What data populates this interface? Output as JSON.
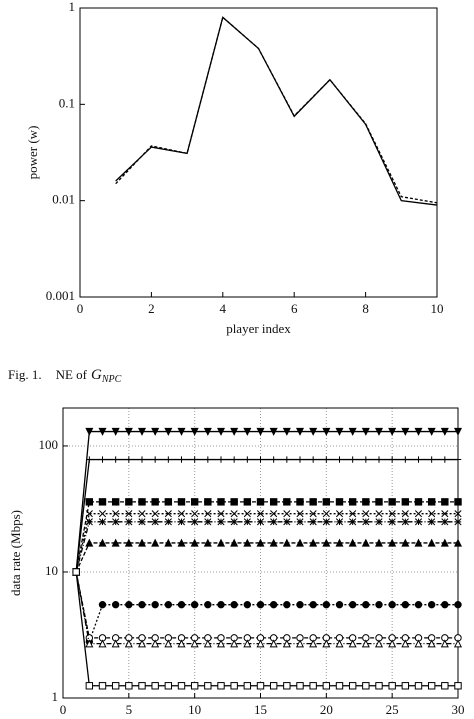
{
  "caption": {
    "label": "Fig. 1.",
    "text": "NE of",
    "symbol": "G",
    "subscript": "NPC"
  },
  "chart_data": [
    {
      "type": "line",
      "x_label": "player index",
      "y_label": "power (w)",
      "x": [
        1,
        2,
        3,
        4,
        5,
        6,
        7,
        8,
        9,
        10
      ],
      "series": [
        {
          "color": "#000000",
          "dash": "none",
          "values": [
            0.016,
            0.036,
            0.031,
            0.8,
            0.38,
            0.075,
            0.18,
            0.062,
            0.01,
            0.009
          ]
        },
        {
          "color": "#000000",
          "dash": "3,2",
          "values": [
            0.015,
            0.037,
            0.031,
            0.8,
            0.38,
            0.076,
            0.18,
            0.063,
            0.011,
            0.0095
          ]
        }
      ],
      "xlim": [
        0,
        10
      ],
      "xticks": [
        0,
        2,
        4,
        6,
        8,
        10
      ],
      "ylim": [
        0.001,
        1
      ],
      "yticks": [
        0.001,
        0.01,
        0.1,
        1
      ],
      "log_y": true,
      "grid": false
    },
    {
      "type": "line",
      "y_label": "data rate (Mbps)",
      "x": [
        1,
        2,
        3,
        4,
        5,
        6,
        7,
        8,
        9,
        10,
        11,
        12,
        13,
        14,
        15,
        16,
        17,
        18,
        19,
        20,
        21,
        22,
        23,
        24,
        25,
        26,
        27,
        28,
        29,
        30
      ],
      "series": [
        {
          "color": "#000000",
          "dash": "none",
          "marker": "triangle-down",
          "values": [
            10,
            130,
            130,
            130,
            130,
            130,
            130,
            130,
            130,
            130,
            130,
            130,
            130,
            130,
            130,
            130,
            130,
            130,
            130,
            130,
            130,
            130,
            130,
            130,
            130,
            130,
            130,
            130,
            130,
            130
          ]
        },
        {
          "color": "#000000",
          "dash": "none",
          "marker": "plus",
          "values": [
            10,
            78,
            78,
            78,
            78,
            78,
            78,
            78,
            78,
            78,
            78,
            78,
            78,
            78,
            78,
            78,
            78,
            78,
            78,
            78,
            78,
            78,
            78,
            78,
            78,
            78,
            78,
            78,
            78,
            78
          ]
        },
        {
          "color": "#000000",
          "dash": "4,2",
          "marker": "square",
          "values": [
            10,
            36,
            36,
            36,
            36,
            36,
            36,
            36,
            36,
            36,
            36,
            36,
            36,
            36,
            36,
            36,
            36,
            36,
            36,
            36,
            36,
            36,
            36,
            36,
            36,
            36,
            36,
            36,
            36,
            36
          ]
        },
        {
          "color": "#000000",
          "dash": "2,2",
          "marker": "cross",
          "values": [
            10,
            29,
            29,
            29,
            29,
            29,
            29,
            29,
            29,
            29,
            29,
            29,
            29,
            29,
            29,
            29,
            29,
            29,
            29,
            29,
            29,
            29,
            29,
            29,
            29,
            29,
            29,
            29,
            29,
            29
          ]
        },
        {
          "color": "#000000",
          "dash": "5,2,1,2",
          "marker": "star",
          "values": [
            10,
            25,
            25,
            25,
            25,
            25,
            25,
            25,
            25,
            25,
            25,
            25,
            25,
            25,
            25,
            25,
            25,
            25,
            25,
            25,
            25,
            25,
            25,
            25,
            25,
            25,
            25,
            25,
            25,
            25
          ]
        },
        {
          "color": "#000000",
          "dash": "4,2",
          "marker": "triangle",
          "values": [
            10,
            17,
            17,
            17,
            17,
            17,
            17,
            17,
            17,
            17,
            17,
            17,
            17,
            17,
            17,
            17,
            17,
            17,
            17,
            17,
            17,
            17,
            17,
            17,
            17,
            17,
            17,
            17,
            17,
            17
          ]
        },
        {
          "color": "#000000",
          "dash": "2,2",
          "marker": "circle",
          "values": [
            10,
            2.8,
            5.5,
            5.5,
            5.5,
            5.5,
            5.5,
            5.5,
            5.5,
            5.5,
            5.5,
            5.5,
            5.5,
            5.5,
            5.5,
            5.5,
            5.5,
            5.5,
            5.5,
            5.5,
            5.5,
            5.5,
            5.5,
            5.5,
            5.5,
            5.5,
            5.5,
            5.5,
            5.5,
            5.5
          ]
        },
        {
          "color": "#000000",
          "dash": "4,2",
          "marker": "circle-open",
          "values": [
            10,
            3.0,
            3.0,
            3.0,
            3.0,
            3.0,
            3.0,
            3.0,
            3.0,
            3.0,
            3.0,
            3.0,
            3.0,
            3.0,
            3.0,
            3.0,
            3.0,
            3.0,
            3.0,
            3.0,
            3.0,
            3.0,
            3.0,
            3.0,
            3.0,
            3.0,
            3.0,
            3.0,
            3.0,
            3.0
          ]
        },
        {
          "color": "#000000",
          "dash": "5,2,1,2",
          "marker": "triangle-open",
          "values": [
            10,
            2.7,
            2.7,
            2.7,
            2.7,
            2.7,
            2.7,
            2.7,
            2.7,
            2.7,
            2.7,
            2.7,
            2.7,
            2.7,
            2.7,
            2.7,
            2.7,
            2.7,
            2.7,
            2.7,
            2.7,
            2.7,
            2.7,
            2.7,
            2.7,
            2.7,
            2.7,
            2.7,
            2.7,
            2.7
          ]
        },
        {
          "color": "#000000",
          "dash": "none",
          "marker": "square-open",
          "values": [
            10,
            1.25,
            1.25,
            1.25,
            1.25,
            1.25,
            1.25,
            1.25,
            1.25,
            1.25,
            1.25,
            1.25,
            1.25,
            1.25,
            1.25,
            1.25,
            1.25,
            1.25,
            1.25,
            1.25,
            1.25,
            1.25,
            1.25,
            1.25,
            1.25,
            1.25,
            1.25,
            1.25,
            1.25,
            1.25
          ]
        }
      ],
      "xlim": [
        0,
        30
      ],
      "xticks": [
        0,
        5,
        10,
        15,
        20,
        25,
        30
      ],
      "ylim": [
        1,
        200
      ],
      "yticks": [
        1,
        10,
        100
      ],
      "log_y": true,
      "grid": true
    }
  ]
}
